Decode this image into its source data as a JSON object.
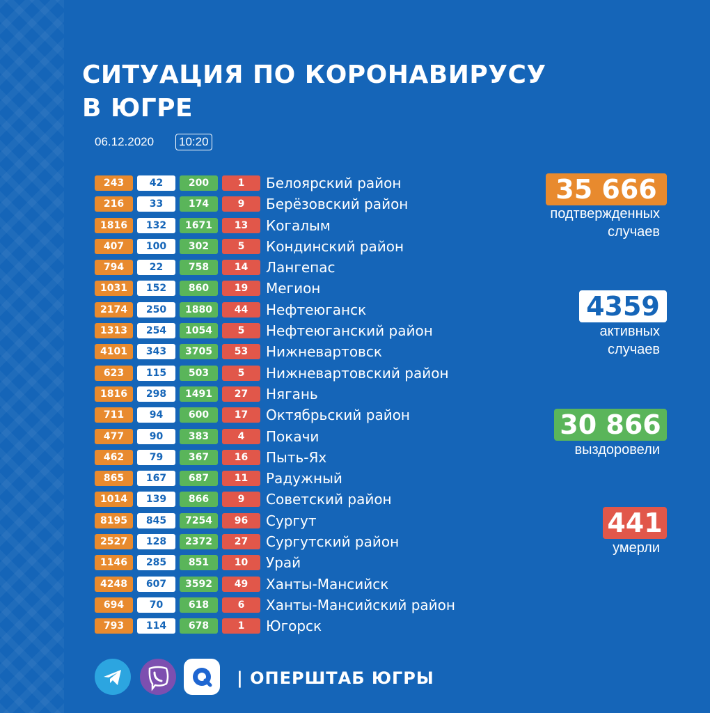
{
  "header": {
    "title_line1": "СИТУАЦИЯ ПО КОРОНАВИРУСУ",
    "title_line2": "В ЮГРЕ",
    "date": "06.12.2020",
    "time": "10:20"
  },
  "colors": {
    "background": "#1565b8",
    "confirmed": "#e88a2e",
    "active": "#ffffff",
    "recovered": "#5ab55a",
    "deaths": "#e1574a"
  },
  "rows": [
    {
      "confirmed": "243",
      "active": "42",
      "recovered": "200",
      "deaths": "1",
      "name": "Белоярский район"
    },
    {
      "confirmed": "216",
      "active": "33",
      "recovered": "174",
      "deaths": "9",
      "name": "Берёзовский район"
    },
    {
      "confirmed": "1816",
      "active": "132",
      "recovered": "1671",
      "deaths": "13",
      "name": "Когалым"
    },
    {
      "confirmed": "407",
      "active": "100",
      "recovered": "302",
      "deaths": "5",
      "name": "Кондинский район"
    },
    {
      "confirmed": "794",
      "active": "22",
      "recovered": "758",
      "deaths": "14",
      "name": "Лангепас"
    },
    {
      "confirmed": "1031",
      "active": "152",
      "recovered": "860",
      "deaths": "19",
      "name": "Мегион"
    },
    {
      "confirmed": "2174",
      "active": "250",
      "recovered": "1880",
      "deaths": "44",
      "name": "Нефтеюганск"
    },
    {
      "confirmed": "1313",
      "active": "254",
      "recovered": "1054",
      "deaths": "5",
      "name": "Нефтеюганский район"
    },
    {
      "confirmed": "4101",
      "active": "343",
      "recovered": "3705",
      "deaths": "53",
      "name": "Нижневартовск"
    },
    {
      "confirmed": "623",
      "active": "115",
      "recovered": "503",
      "deaths": "5",
      "name": "Нижневартовский район"
    },
    {
      "confirmed": "1816",
      "active": "298",
      "recovered": "1491",
      "deaths": "27",
      "name": "Нягань"
    },
    {
      "confirmed": "711",
      "active": "94",
      "recovered": "600",
      "deaths": "17",
      "name": "Октябрьский район"
    },
    {
      "confirmed": "477",
      "active": "90",
      "recovered": "383",
      "deaths": "4",
      "name": "Покачи"
    },
    {
      "confirmed": "462",
      "active": "79",
      "recovered": "367",
      "deaths": "16",
      "name": "Пыть-Ях"
    },
    {
      "confirmed": "865",
      "active": "167",
      "recovered": "687",
      "deaths": "11",
      "name": "Радужный"
    },
    {
      "confirmed": "1014",
      "active": "139",
      "recovered": "866",
      "deaths": "9",
      "name": "Советский район"
    },
    {
      "confirmed": "8195",
      "active": "845",
      "recovered": "7254",
      "deaths": "96",
      "name": "Сургут"
    },
    {
      "confirmed": "2527",
      "active": "128",
      "recovered": "2372",
      "deaths": "27",
      "name": "Сургутский район"
    },
    {
      "confirmed": "1146",
      "active": "285",
      "recovered": "851",
      "deaths": "10",
      "name": "Урай"
    },
    {
      "confirmed": "4248",
      "active": "607",
      "recovered": "3592",
      "deaths": "49",
      "name": "Ханты-Мансийск"
    },
    {
      "confirmed": "694",
      "active": "70",
      "recovered": "618",
      "deaths": "6",
      "name": "Ханты-Мансийский район"
    },
    {
      "confirmed": "793",
      "active": "114",
      "recovered": "678",
      "deaths": "1",
      "name": "Югорск"
    }
  ],
  "summary": {
    "confirmed": {
      "value": "35 666",
      "label_line1": "подтвержденных",
      "label_line2": "случаев"
    },
    "active": {
      "value": "4359",
      "label_line1": "активных",
      "label_line2": "случаев"
    },
    "recovered": {
      "value": "30 866",
      "label_line1": "выздоровели"
    },
    "deaths": {
      "value": "441",
      "label_line1": "умерли"
    }
  },
  "footer": {
    "icons": [
      "telegram-icon",
      "viber-icon",
      "icq-icon"
    ],
    "text": "| ОПЕРШТАБ ЮГРЫ"
  }
}
